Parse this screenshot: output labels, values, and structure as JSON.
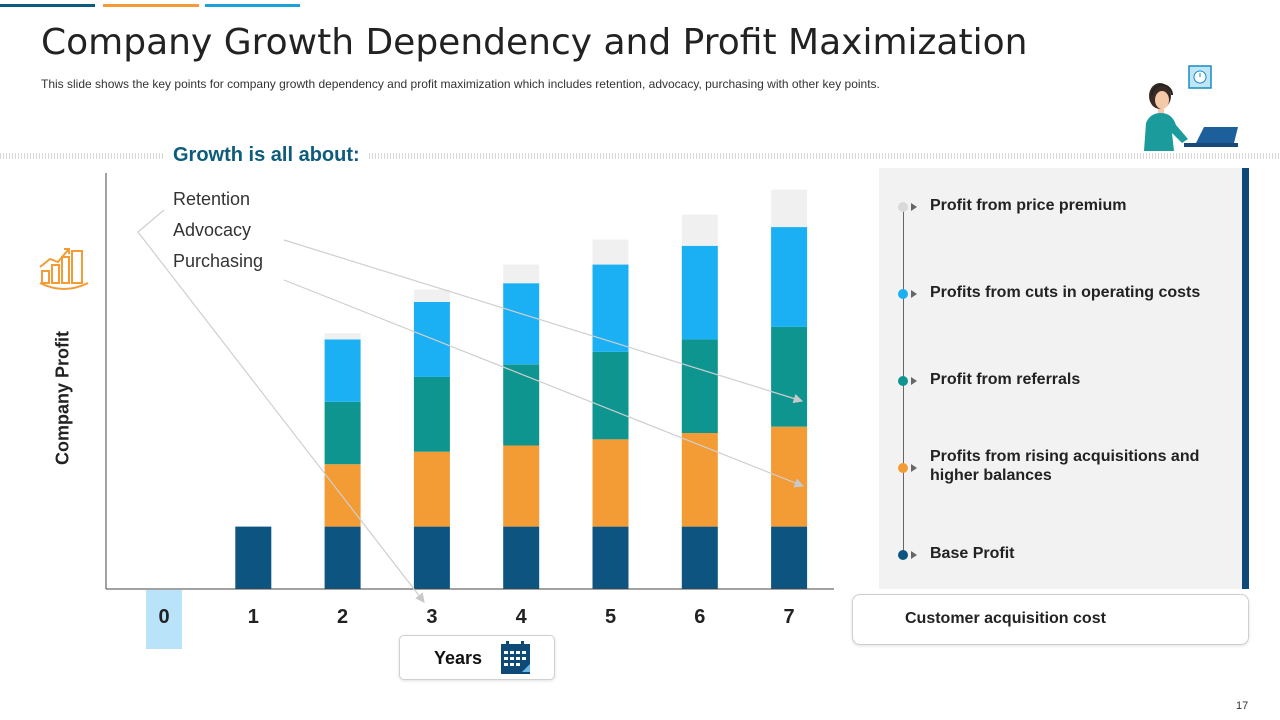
{
  "slide": {
    "title": "Company Growth Dependency and Profit Maximization",
    "subtitle": "This slide shows the key points for company growth dependency and profit maximization which includes retention, advocacy, purchasing with other key points.",
    "page_number": "17",
    "accent_colors": [
      "#0d5b7d",
      "#f39b35",
      "#1da1d8"
    ]
  },
  "growth": {
    "heading": "Growth is all about:",
    "points": [
      "Retention",
      "Advocacy",
      "Purchasing"
    ]
  },
  "chart_data": {
    "type": "bar",
    "stacked": true,
    "ylabel": "Company Profit",
    "xlabel": "Years",
    "categories": [
      "0",
      "1",
      "2",
      "3",
      "4",
      "5",
      "6",
      "7"
    ],
    "highlighted_category": "0",
    "ylim": [
      0,
      100
    ],
    "axis_ticks_visible": false,
    "series": [
      {
        "name": "Base Profit",
        "color": "#0d5580",
        "values": [
          0,
          15,
          15,
          15,
          15,
          15,
          15,
          15
        ]
      },
      {
        "name": "Profits from rising acquisitions and higher balances",
        "color": "#f39b35",
        "values": [
          0,
          0,
          15,
          18,
          19.5,
          21,
          22.5,
          24
        ]
      },
      {
        "name": "Profit from referrals",
        "color": "#0e9590",
        "values": [
          0,
          0,
          15,
          18,
          19.5,
          21,
          22.5,
          24
        ]
      },
      {
        "name": "Profits from cuts in operating costs",
        "color": "#1ab0f3",
        "values": [
          0,
          0,
          15,
          18,
          19.5,
          21,
          22.5,
          24
        ]
      },
      {
        "name": "Profit from price premium",
        "color": "#f0f0f0",
        "values": [
          0,
          0,
          1.5,
          3,
          4.5,
          6,
          7.5,
          9
        ]
      }
    ]
  },
  "legend_items": [
    {
      "label": "Profit from price premium",
      "color": "#d9d9d9"
    },
    {
      "label": "Profits from cuts in operating costs",
      "color": "#1ab0f3"
    },
    {
      "label": "Profit from referrals",
      "color": "#0e9590"
    },
    {
      "label": "Profits from rising acquisitions and higher balances",
      "color": "#f39b35"
    },
    {
      "label": "Base Profit",
      "color": "#0d5580"
    }
  ],
  "customer_acquisition": {
    "label": "Customer acquisition cost"
  },
  "icons": {
    "growth": "growth-chart-icon",
    "person": "support-agent-laptop-icon",
    "calendar": "calendar-icon",
    "clock": "clock-icon"
  }
}
